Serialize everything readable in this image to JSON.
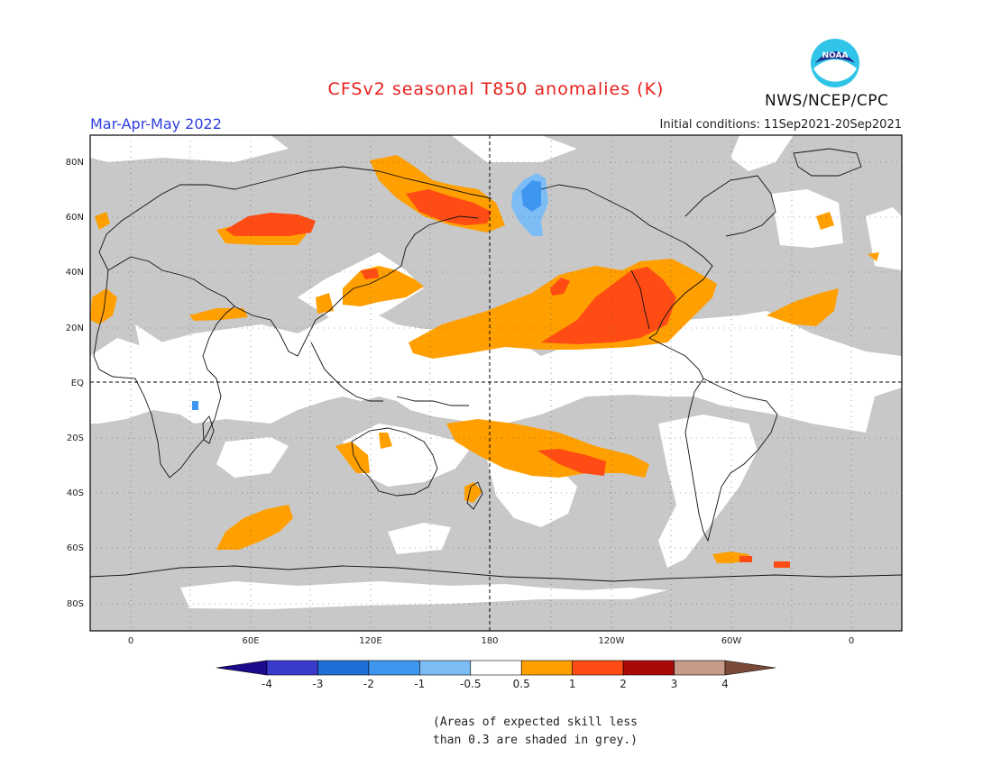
{
  "title": "CFSv2 seasonal T850 anomalies (K)",
  "season": "Mar-Apr-May 2022",
  "initial_conditions": "Initial conditions: 11Sep2021-20Sep2021",
  "agency": "NWS/NCEP/CPC",
  "logo_text": "NOAA",
  "footnote_line1": "(Areas of expected skill less",
  "footnote_line2": "than 0.3 are shaded in grey.)",
  "lat_labels": [
    "80N",
    "60N",
    "40N",
    "20N",
    "EQ",
    "20S",
    "40S",
    "60S",
    "80S"
  ],
  "lon_labels": [
    "0",
    "60E",
    "120E",
    "180",
    "120W",
    "60W",
    "0"
  ],
  "colorbar": {
    "labels": [
      "-4",
      "-3",
      "-2",
      "-1",
      "-0.5",
      "0.5",
      "1",
      "2",
      "3",
      "4"
    ],
    "colors": [
      "#1a0a8c",
      "#3a3acc",
      "#1f6fd6",
      "#3f96ee",
      "#7dbdf5",
      "#ffffff",
      "#ff9f00",
      "#ff4b14",
      "#a80a0a",
      "#c89a88",
      "#7a4a38"
    ]
  },
  "colors": {
    "skill_grey": "#c8c8c8",
    "anomaly_0_5_to_1": "#ff9f00",
    "anomaly_1_to_2": "#ff4b14",
    "anomaly_neg_0_5_to_neg_1": "#7dbdf5",
    "anomaly_neg_1_to_neg_2": "#3f96ee"
  }
}
